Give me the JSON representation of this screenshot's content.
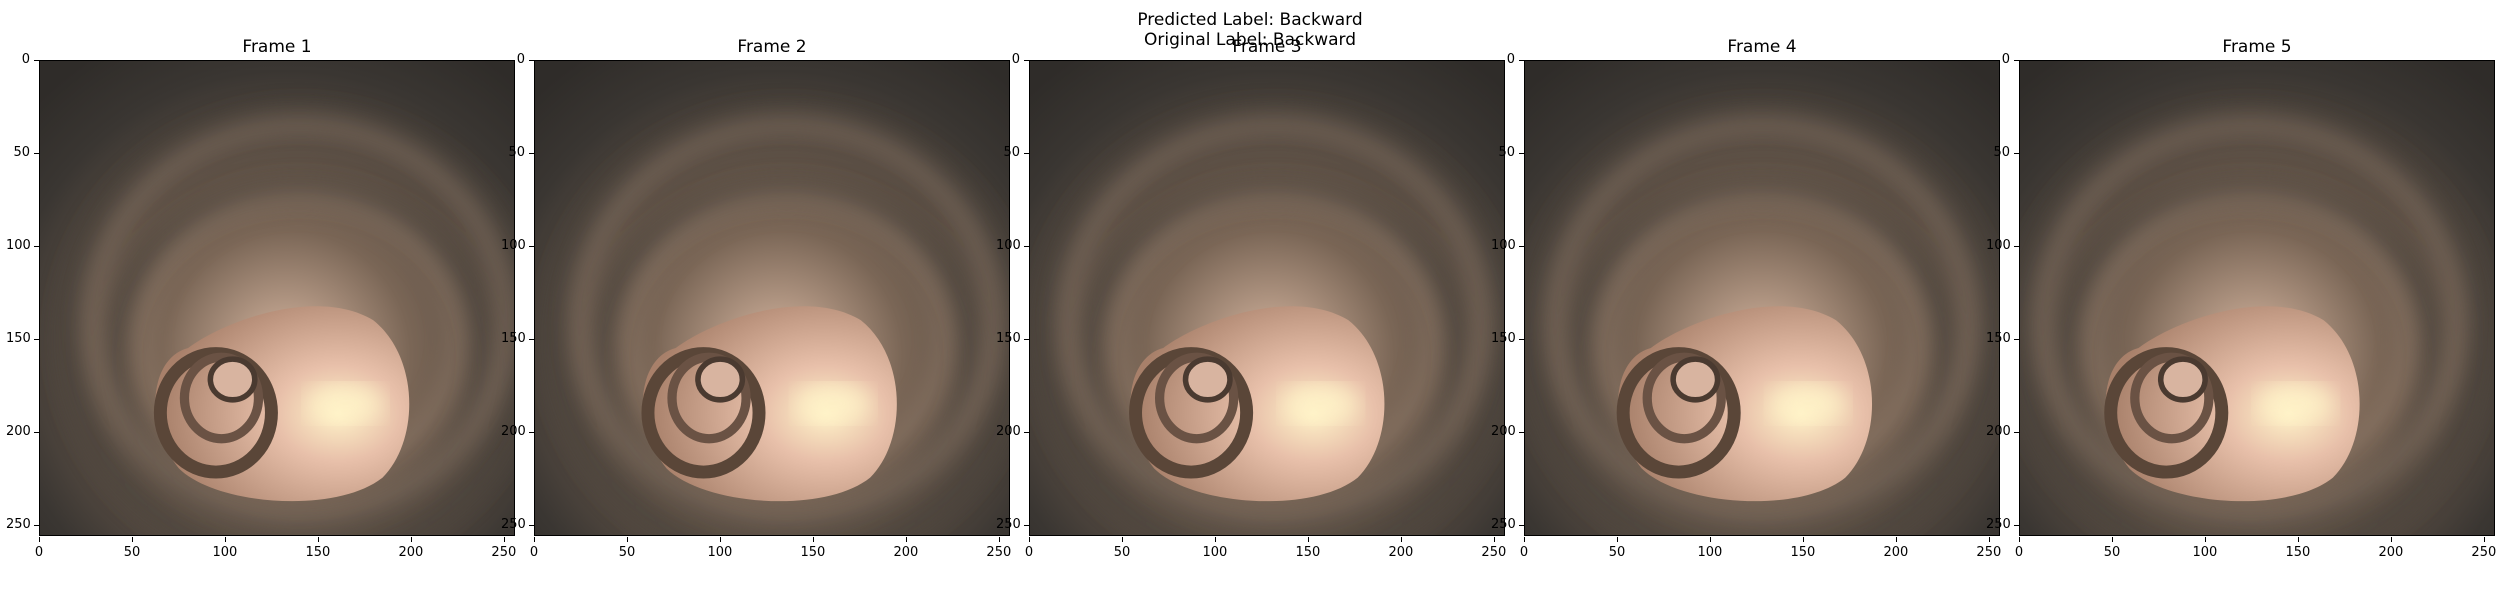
{
  "suptitle": {
    "predicted": "Predicted Label: Backward",
    "original": "Original Label: Backward"
  },
  "frames": [
    {
      "title": "Frame 1"
    },
    {
      "title": "Frame 2"
    },
    {
      "title": "Frame 3"
    },
    {
      "title": "Frame 4"
    },
    {
      "title": "Frame 5"
    }
  ],
  "axis": {
    "xticks": [
      "0",
      "50",
      "100",
      "150",
      "200",
      "250"
    ],
    "yticks": [
      "0",
      "50",
      "100",
      "150",
      "200",
      "250"
    ],
    "range": [
      0,
      255
    ]
  },
  "colors": {
    "tissue_dark": "#3a3632",
    "tissue_mid": "#7a6656",
    "tissue_light": "#d8b8a2",
    "lumen_glow": "#fff3c8"
  }
}
